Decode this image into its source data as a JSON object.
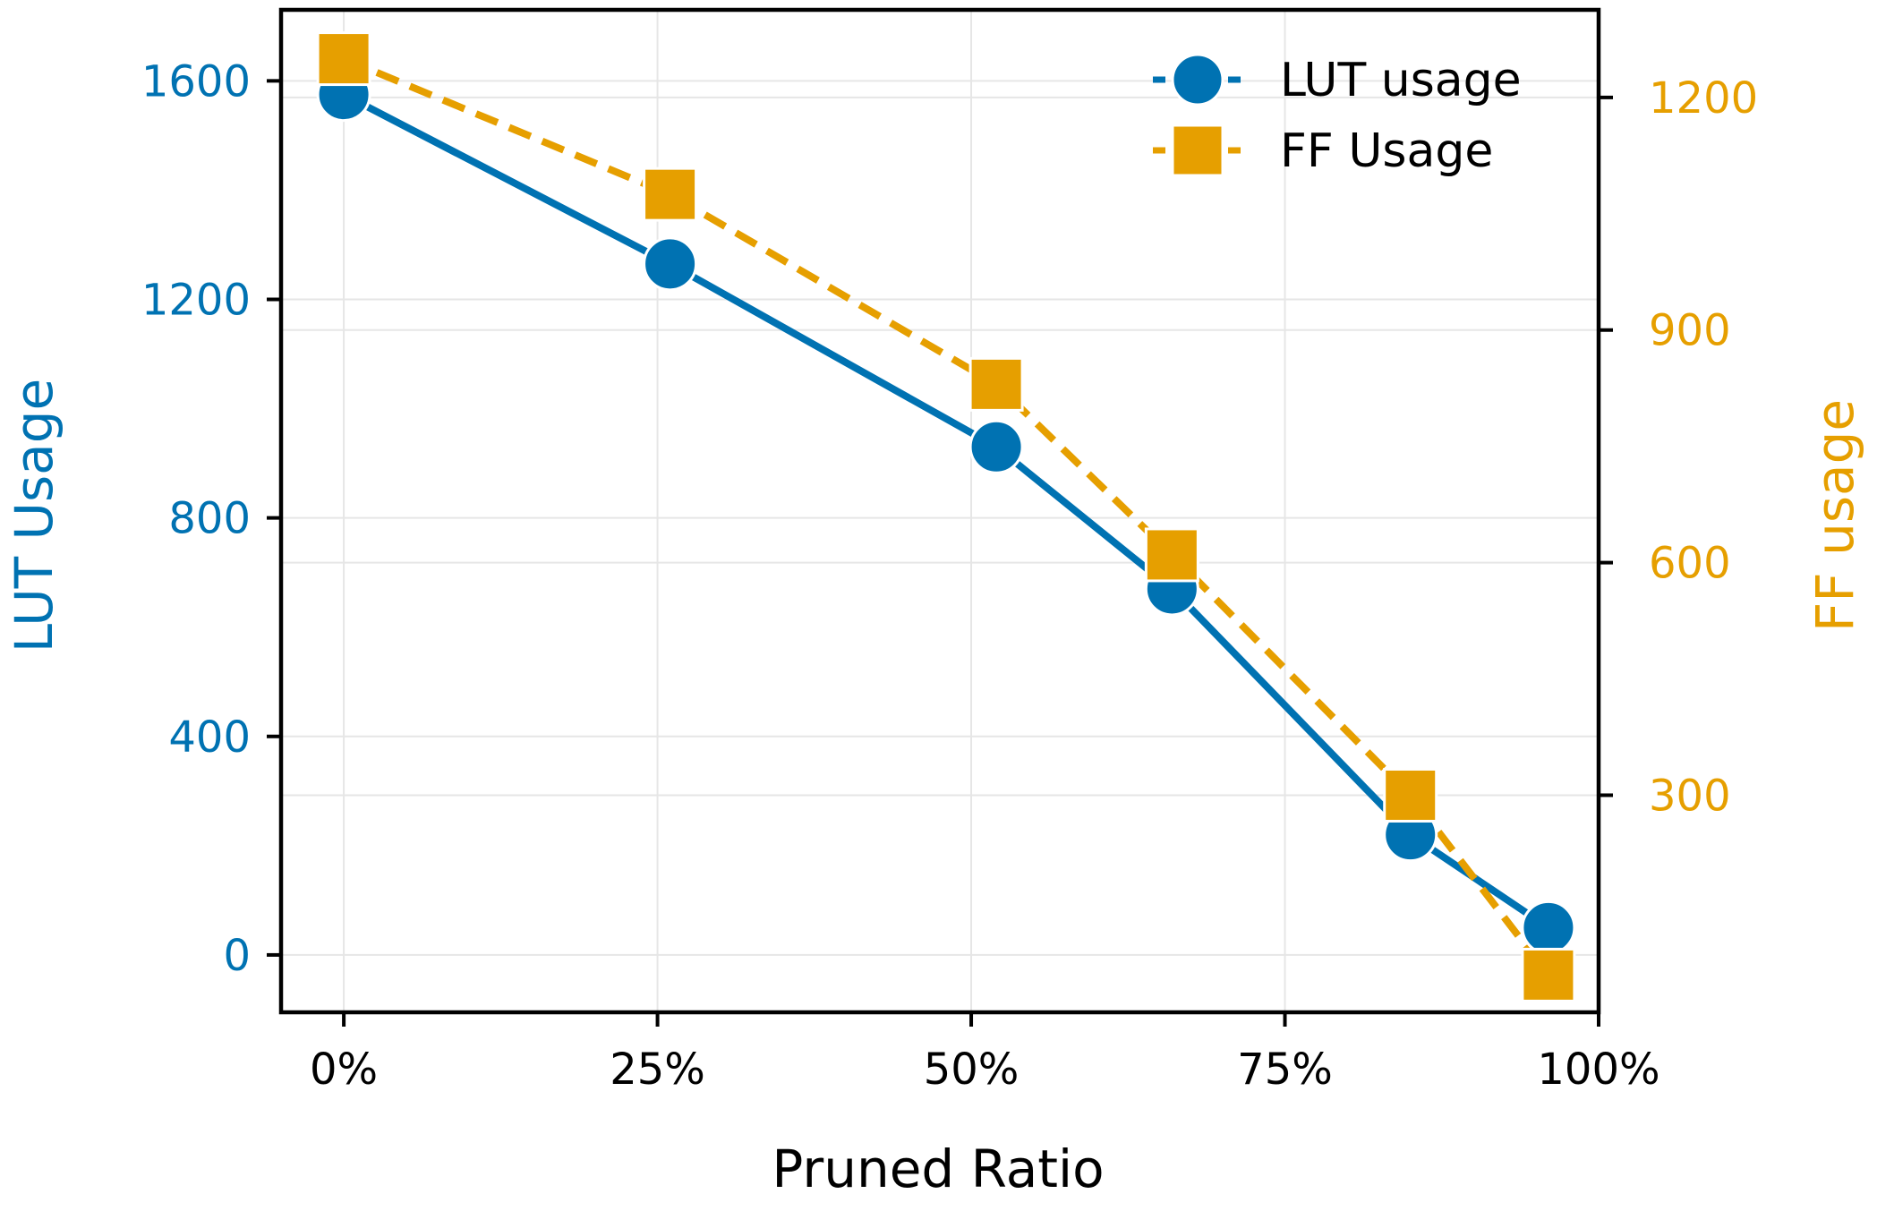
{
  "chart_data": {
    "type": "line",
    "x": [
      0,
      26,
      52,
      66,
      85,
      96
    ],
    "xlabel": "Pruned Ratio",
    "xlim": [
      -5,
      100
    ],
    "xticks": [
      0,
      25,
      50,
      75,
      100
    ],
    "xtick_labels": [
      "0%",
      "25%",
      "50%",
      "75%",
      "100%"
    ],
    "ylabel_left": "LUT Usage",
    "ylim_left": [
      -105,
      1730
    ],
    "yticks_left": [
      0,
      400,
      800,
      1200,
      1600
    ],
    "ytick_labels_left": [
      "0",
      "400",
      "800",
      "1200",
      "1600"
    ],
    "ylabel_right": "FF usage",
    "ylim_right": [
      20,
      1313
    ],
    "yticks_right": [
      300,
      600,
      900,
      1200
    ],
    "ytick_labels_right": [
      "300",
      "600",
      "900",
      "1200"
    ],
    "grid": true,
    "legend_position": "top-right",
    "series": [
      {
        "name": "LUT usage",
        "axis": "left",
        "marker": "circle",
        "line": "solid",
        "color": "#0072b2",
        "values": [
          1575,
          1265,
          930,
          670,
          220,
          50
        ]
      },
      {
        "name": "FF Usage",
        "axis": "right",
        "marker": "square",
        "line": "dashed",
        "color": "#e69f00",
        "values": [
          1250,
          1075,
          830,
          610,
          300,
          68
        ]
      }
    ]
  },
  "colors": {
    "lut": "#0072b2",
    "ff": "#e69f00",
    "axis": "#000000",
    "grid": "#e6e6e6"
  }
}
